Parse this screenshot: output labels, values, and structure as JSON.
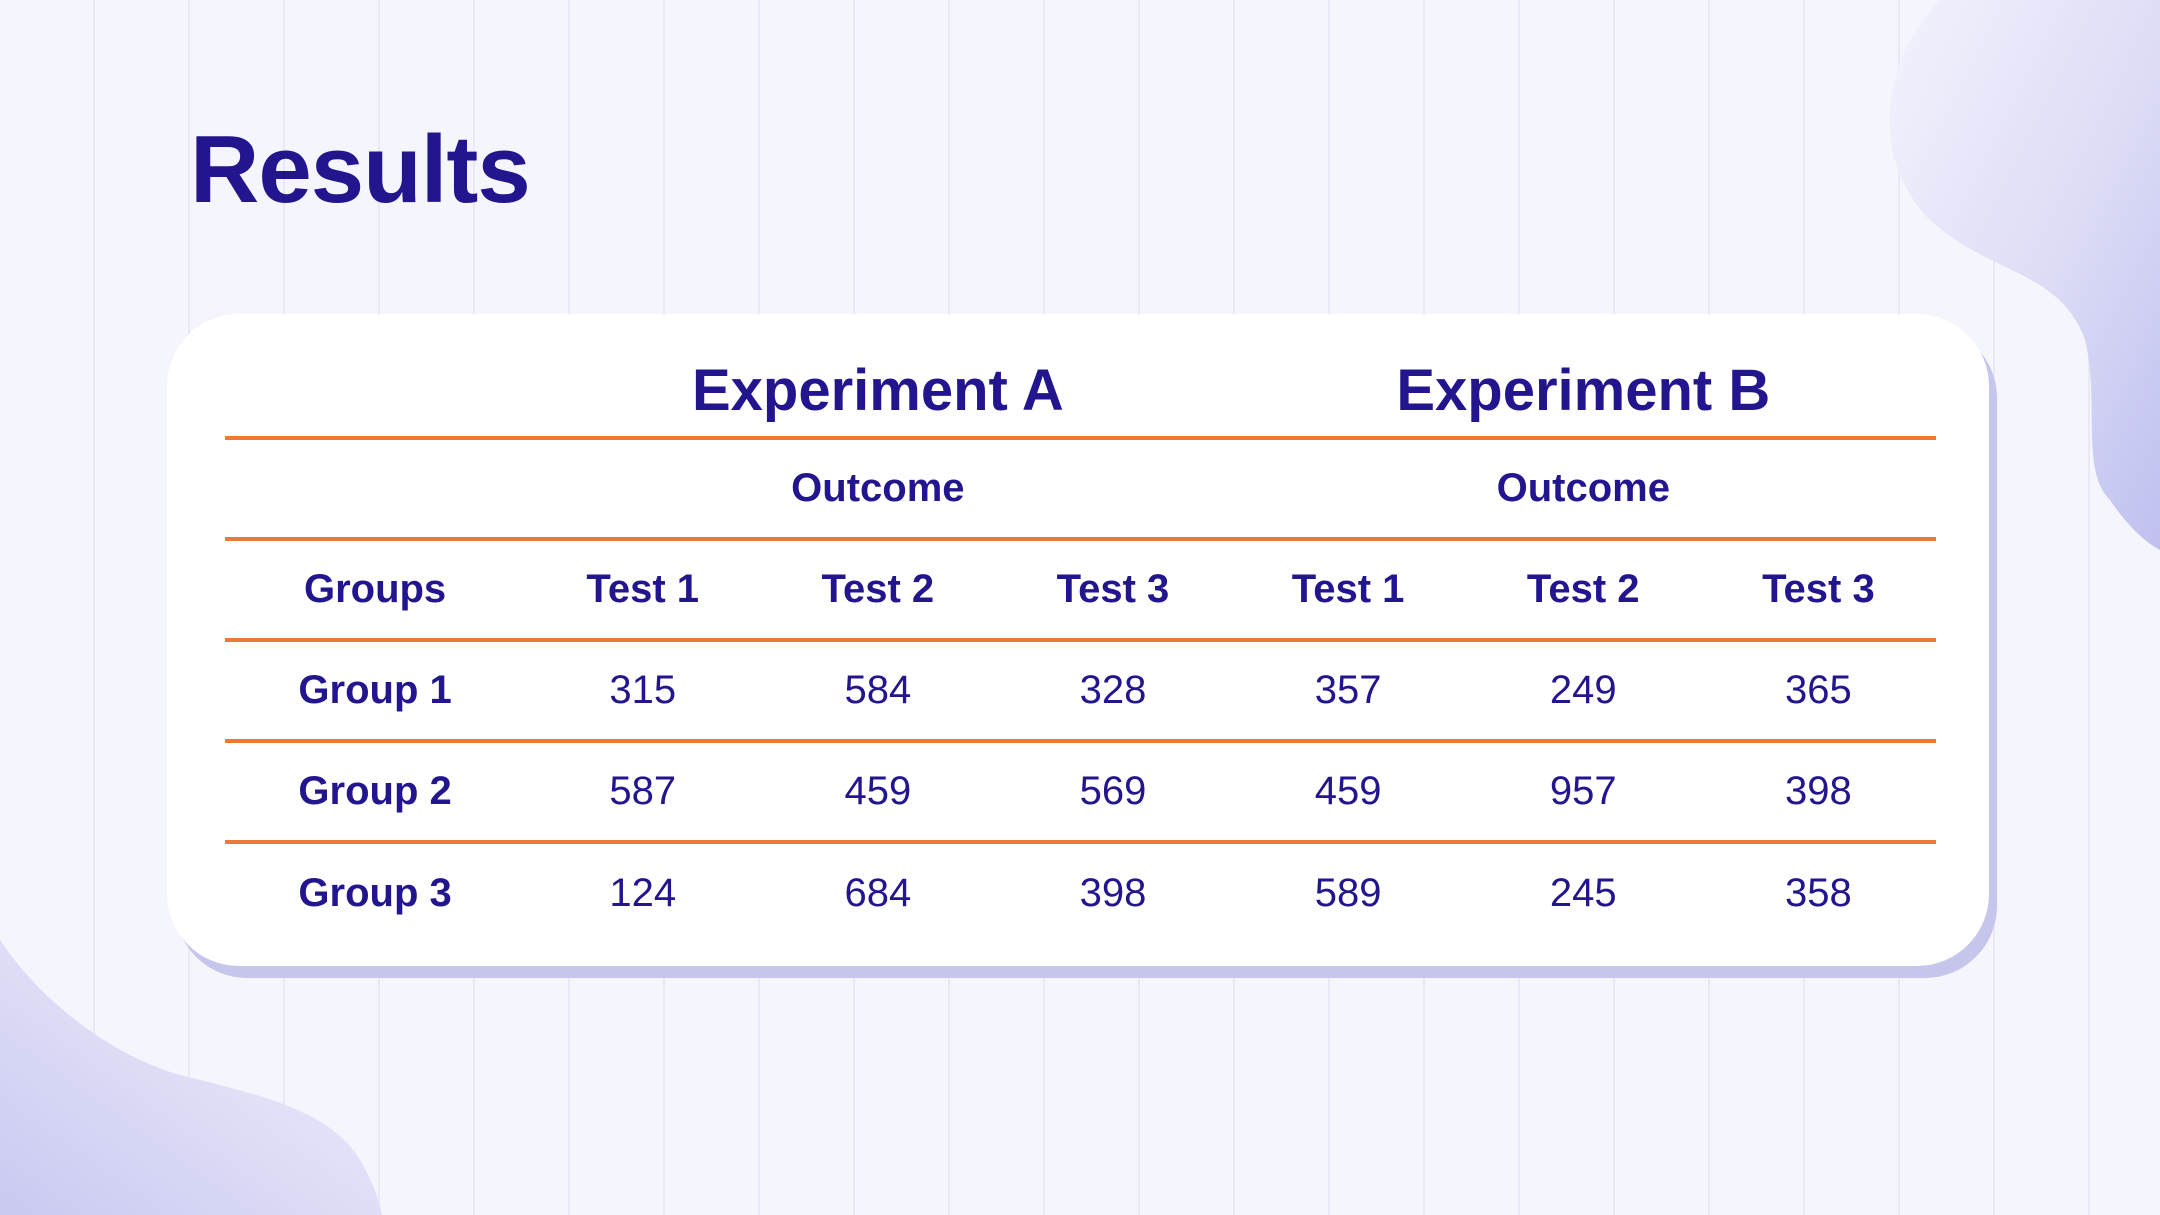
{
  "slide": {
    "title": "Results"
  },
  "table": {
    "experiments": [
      "Experiment A",
      "Experiment B"
    ],
    "outcome_label": "Outcome",
    "columns": [
      "Groups",
      "Test 1",
      "Test 2",
      "Test 3",
      "Test 1",
      "Test 2",
      "Test 3"
    ],
    "rows": [
      {
        "group": "Group 1",
        "values": [
          "315",
          "584",
          "328",
          "357",
          "249",
          "365"
        ]
      },
      {
        "group": "Group 2",
        "values": [
          "587",
          "459",
          "569",
          "459",
          "957",
          "398"
        ]
      },
      {
        "group": "Group 3",
        "values": [
          "124",
          "684",
          "398",
          "589",
          "245",
          "358"
        ]
      }
    ]
  },
  "colors": {
    "text": "#22158e",
    "rule": "#ec7a36",
    "background": "#f5f5fd",
    "card": "#ffffff",
    "blob": "#cdcdf2"
  }
}
